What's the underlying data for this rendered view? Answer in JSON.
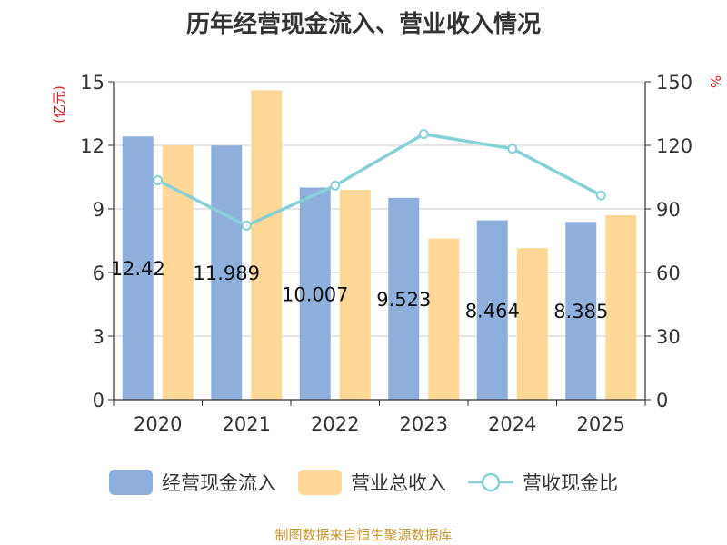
{
  "chart_data": {
    "type": "bar",
    "title": "历年经营现金流入、营业收入情况",
    "categories": [
      "2020",
      "2021",
      "2022",
      "2023",
      "2024",
      "2025"
    ],
    "y_left_unit": "(亿元)",
    "y_right_unit": "%",
    "ylim_left": [
      0,
      15
    ],
    "ylim_right": [
      0,
      150
    ],
    "yticks_left": [
      "0",
      "3",
      "6",
      "9",
      "12",
      "15"
    ],
    "yticks_right": [
      "0",
      "30",
      "60",
      "90",
      "120",
      "150"
    ],
    "series": [
      {
        "name": "经营现金流入",
        "kind": "bar",
        "axis": "left",
        "color": "#8eaedb",
        "values": [
          12.42,
          11.989,
          10.007,
          9.523,
          8.464,
          8.385
        ],
        "labels": [
          "12.42",
          "11.989",
          "10.007",
          "9.523",
          "8.464",
          "8.385"
        ]
      },
      {
        "name": "营业总收入",
        "kind": "bar",
        "axis": "left",
        "color": "#ffd898",
        "values": [
          12.0,
          14.6,
          9.9,
          7.6,
          7.15,
          8.7
        ]
      },
      {
        "name": "营收现金比",
        "kind": "line",
        "axis": "right",
        "color": "#86d0d6",
        "values": [
          103.5,
          82.1,
          101.0,
          125.3,
          118.4,
          96.4
        ]
      }
    ],
    "grid": true,
    "legend_position": "bottom"
  },
  "source": "制图数据来自恒生聚源数据库"
}
